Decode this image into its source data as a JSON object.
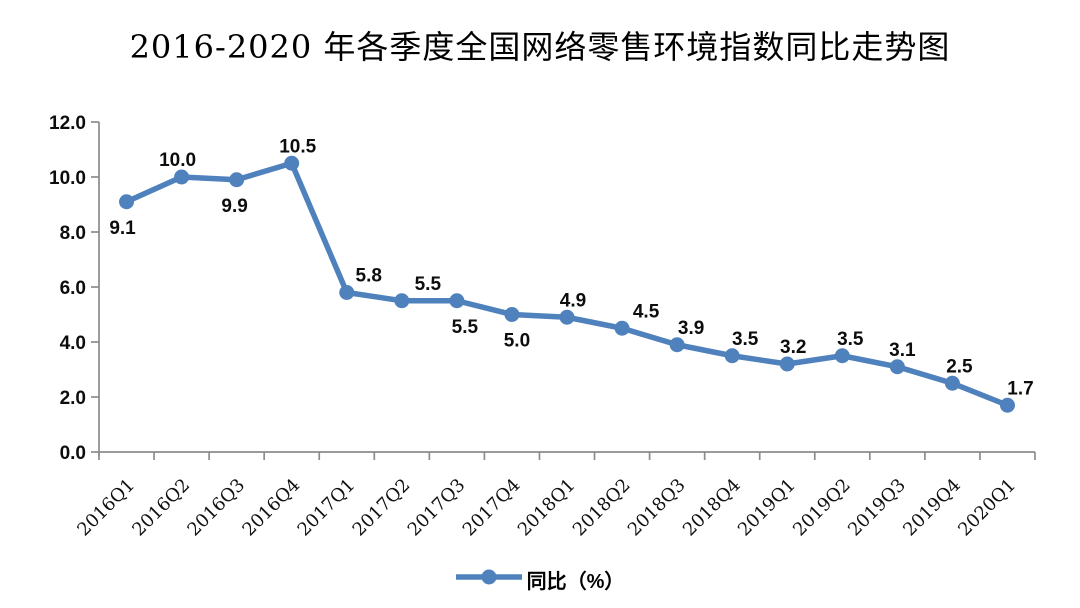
{
  "chart_data": {
    "type": "line",
    "title": "2016-2020 年各季度全国网络零售环境指数同比走势图",
    "categories": [
      "2016Q1",
      "2016Q2",
      "2016Q3",
      "2016Q4",
      "2017Q1",
      "2017Q2",
      "2017Q3",
      "2017Q4",
      "2018Q1",
      "2018Q2",
      "2018Q3",
      "2018Q4",
      "2019Q1",
      "2019Q2",
      "2019Q3",
      "2019Q4",
      "2020Q1"
    ],
    "series": [
      {
        "name": "同比（%）",
        "values": [
          9.1,
          10.0,
          9.9,
          10.5,
          5.8,
          5.5,
          5.5,
          5.0,
          4.9,
          4.5,
          3.9,
          3.5,
          3.2,
          3.5,
          3.1,
          2.5,
          1.7
        ]
      }
    ],
    "data_labels": {
      "show": true,
      "decimals": 1,
      "positions": [
        "below",
        "above",
        "below",
        "above",
        "above",
        "above",
        "below",
        "below",
        "above",
        "above",
        "above",
        "above",
        "above",
        "above",
        "above",
        "above",
        "above"
      ],
      "dx": [
        -4,
        -4,
        -2,
        6,
        22,
        26,
        8,
        5,
        6,
        24,
        14,
        13,
        6,
        8,
        5,
        7,
        13
      ]
    },
    "xlabel": "",
    "ylabel": "",
    "ylim": [
      0,
      12
    ],
    "ytick_step": 2,
    "ytick_labels": [
      "0.0",
      "2.0",
      "4.0",
      "6.0",
      "8.0",
      "10.0",
      "12.0"
    ],
    "grid": false,
    "x_label_rotation_deg": -45,
    "legend": {
      "position": "bottom-center",
      "label": "同比（%）"
    },
    "colors": {
      "line": "#4f81bd",
      "marker": "#4f81bd",
      "axis": "#8c8c8c",
      "text": "#000000",
      "background": "#ffffff"
    }
  }
}
